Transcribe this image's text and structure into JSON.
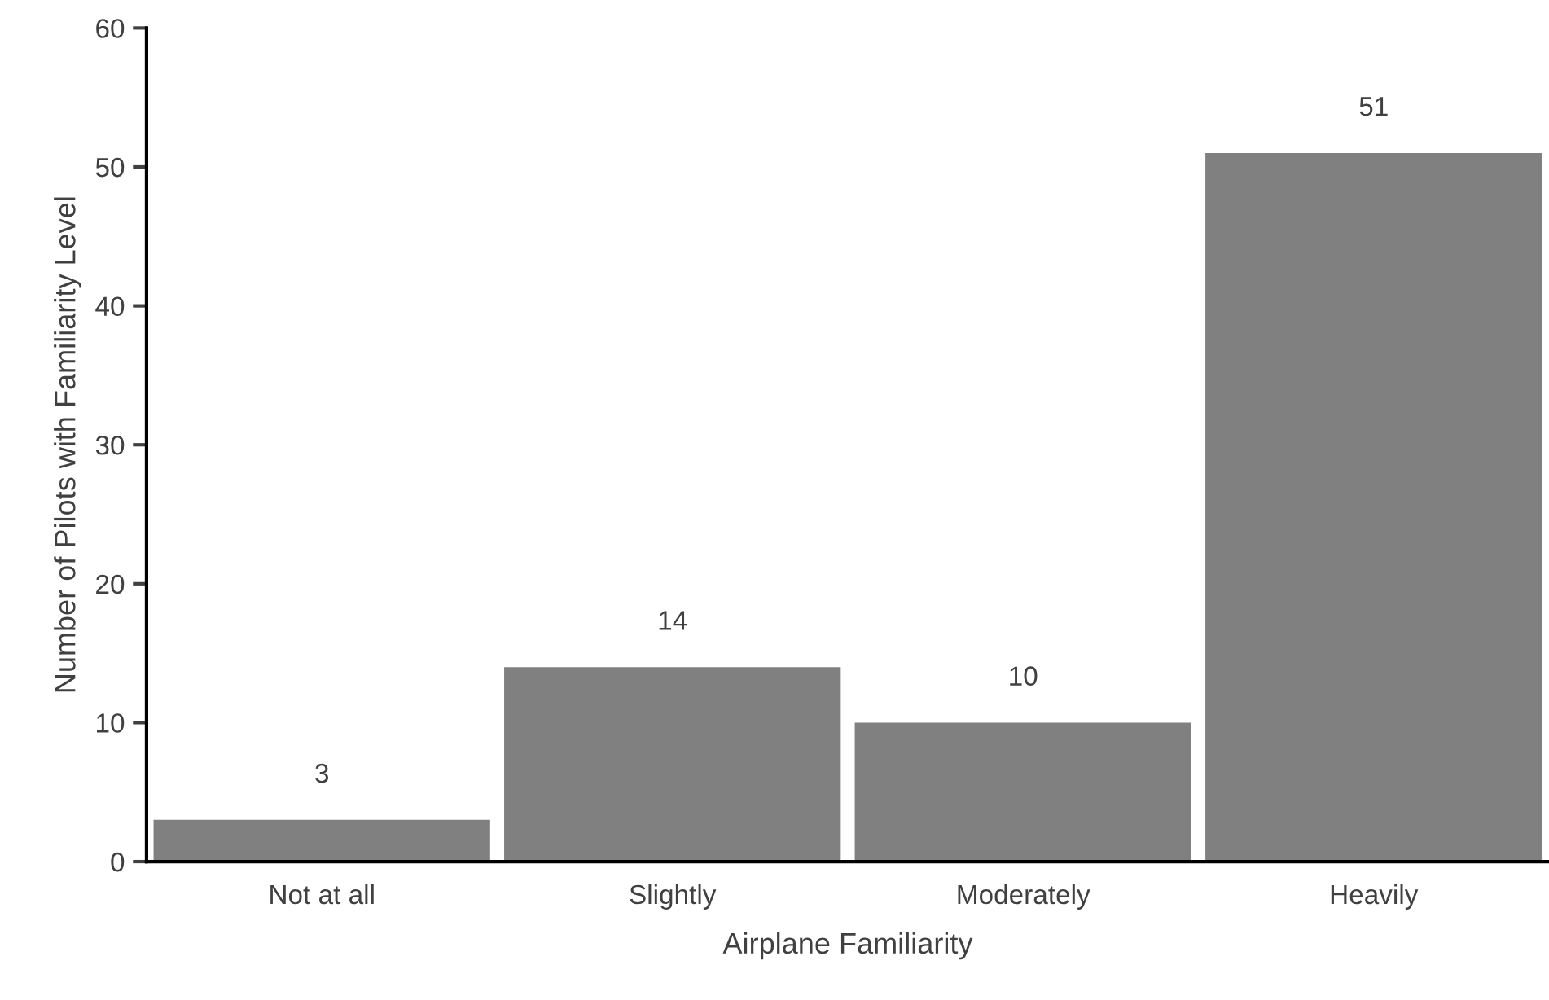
{
  "chart_data": {
    "type": "bar",
    "xlabel": "Airplane Familiarity",
    "ylabel": "Number of Pilots with Familiarity Level",
    "categories": [
      "Not at all",
      "Slightly",
      "Moderately",
      "Heavily"
    ],
    "values": [
      3,
      14,
      10,
      51
    ],
    "color": "#808080",
    "ylim": [
      0,
      60
    ],
    "yticks": [
      0,
      10,
      20,
      30,
      40,
      50,
      60
    ],
    "grid": false,
    "data_labels": true
  }
}
